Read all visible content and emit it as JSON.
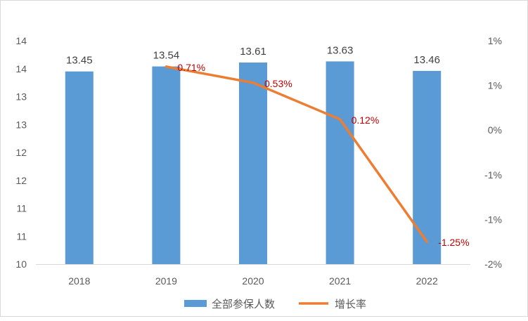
{
  "chart_data": {
    "type": "bar",
    "title": "",
    "xlabel": "",
    "ylabel": "",
    "categories": [
      "2018",
      "2019",
      "2020",
      "2021",
      "2022"
    ],
    "series": [
      {
        "name": "全部参保人数",
        "type": "bar",
        "axis": "left",
        "values": [
          13.45,
          13.54,
          13.61,
          13.63,
          13.46
        ],
        "labels": [
          "13.45",
          "13.54",
          "13.61",
          "13.63",
          "13.46"
        ],
        "color": "#5b9bd5"
      },
      {
        "name": "增长率",
        "type": "line",
        "axis": "right",
        "values": [
          null,
          0.71,
          0.53,
          0.12,
          -1.25
        ],
        "labels": [
          "",
          "0.71%",
          "0.53%",
          "0.12%",
          "-1.25%"
        ],
        "color": "#ed7d31",
        "label_color": "#c00000"
      }
    ],
    "left_axis": {
      "range": [
        10,
        14
      ],
      "ticks": [
        10,
        10.5,
        11,
        11.5,
        12,
        12.5,
        13,
        13.5,
        14
      ],
      "tick_labels": [
        "10",
        "11",
        "11",
        "12",
        "12",
        "13",
        "13",
        "14",
        "14"
      ]
    },
    "right_axis": {
      "range": [
        -1.5,
        1.0
      ],
      "ticks": [
        -1.5,
        -1.0,
        -0.5,
        0.0,
        0.5,
        1.0
      ],
      "tick_labels": [
        "-2%",
        "-1%",
        "-1%",
        "0%",
        "1%",
        "1%"
      ]
    },
    "grid": false,
    "legend": {
      "position": "bottom",
      "entries": [
        "全部参保人数",
        "增长率"
      ]
    },
    "colors": {
      "axis": "#d9d9d9",
      "tick_text": "#595959",
      "border": "#d9d9d9"
    }
  }
}
